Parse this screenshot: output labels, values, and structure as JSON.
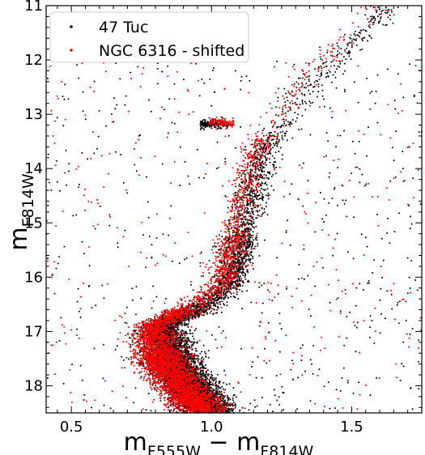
{
  "chart_data": {
    "type": "scatter",
    "title": "",
    "xlabel": {
      "main": "m",
      "sub1": "F555W",
      "minus": " − ",
      "main2": "m",
      "sub2": "F814W"
    },
    "ylabel": {
      "main": "m",
      "sub": "F814W"
    },
    "xlim": [
      0.41,
      1.75
    ],
    "ylim": [
      18.5,
      11.0
    ],
    "y_inverted": true,
    "xticks": [
      0.5,
      1.0,
      1.5
    ],
    "xtick_labels": [
      "0.5",
      "1.0",
      "1.5"
    ],
    "yticks": [
      11,
      12,
      13,
      14,
      15,
      16,
      17,
      18
    ],
    "ytick_labels": [
      "11",
      "12",
      "13",
      "14",
      "15",
      "16",
      "17",
      "18"
    ],
    "legend_position": "top-left",
    "series": [
      {
        "name": "47 Tuc",
        "color": "#000000",
        "count": 9000,
        "main_sequence_offset": 0.02,
        "red_clump": {
          "x": [
            0.96,
            1.06
          ],
          "y": 13.18
        },
        "points_sample": [
          [
            0.97,
            18.4
          ],
          [
            0.82,
            17.5
          ],
          [
            0.86,
            16.8
          ],
          [
            1.0,
            16.4
          ],
          [
            1.08,
            15.6
          ],
          [
            1.12,
            14.6
          ],
          [
            1.16,
            13.9
          ],
          [
            1.3,
            12.6
          ],
          [
            1.5,
            11.7
          ],
          [
            1.0,
            13.18
          ]
        ]
      },
      {
        "name": "NGC 6316 - shifted",
        "color": "#ff0000",
        "count": 5500,
        "main_sequence_offset": -0.01,
        "red_clump": {
          "x": [
            0.99,
            1.08
          ],
          "y": 13.15
        },
        "points_sample": [
          [
            0.95,
            18.4
          ],
          [
            0.8,
            17.6
          ],
          [
            0.83,
            16.9
          ],
          [
            0.96,
            16.5
          ],
          [
            1.06,
            15.6
          ],
          [
            1.11,
            14.7
          ],
          [
            1.15,
            13.9
          ],
          [
            1.28,
            12.7
          ],
          [
            1.5,
            11.6
          ],
          [
            1.04,
            13.15
          ]
        ]
      }
    ]
  }
}
